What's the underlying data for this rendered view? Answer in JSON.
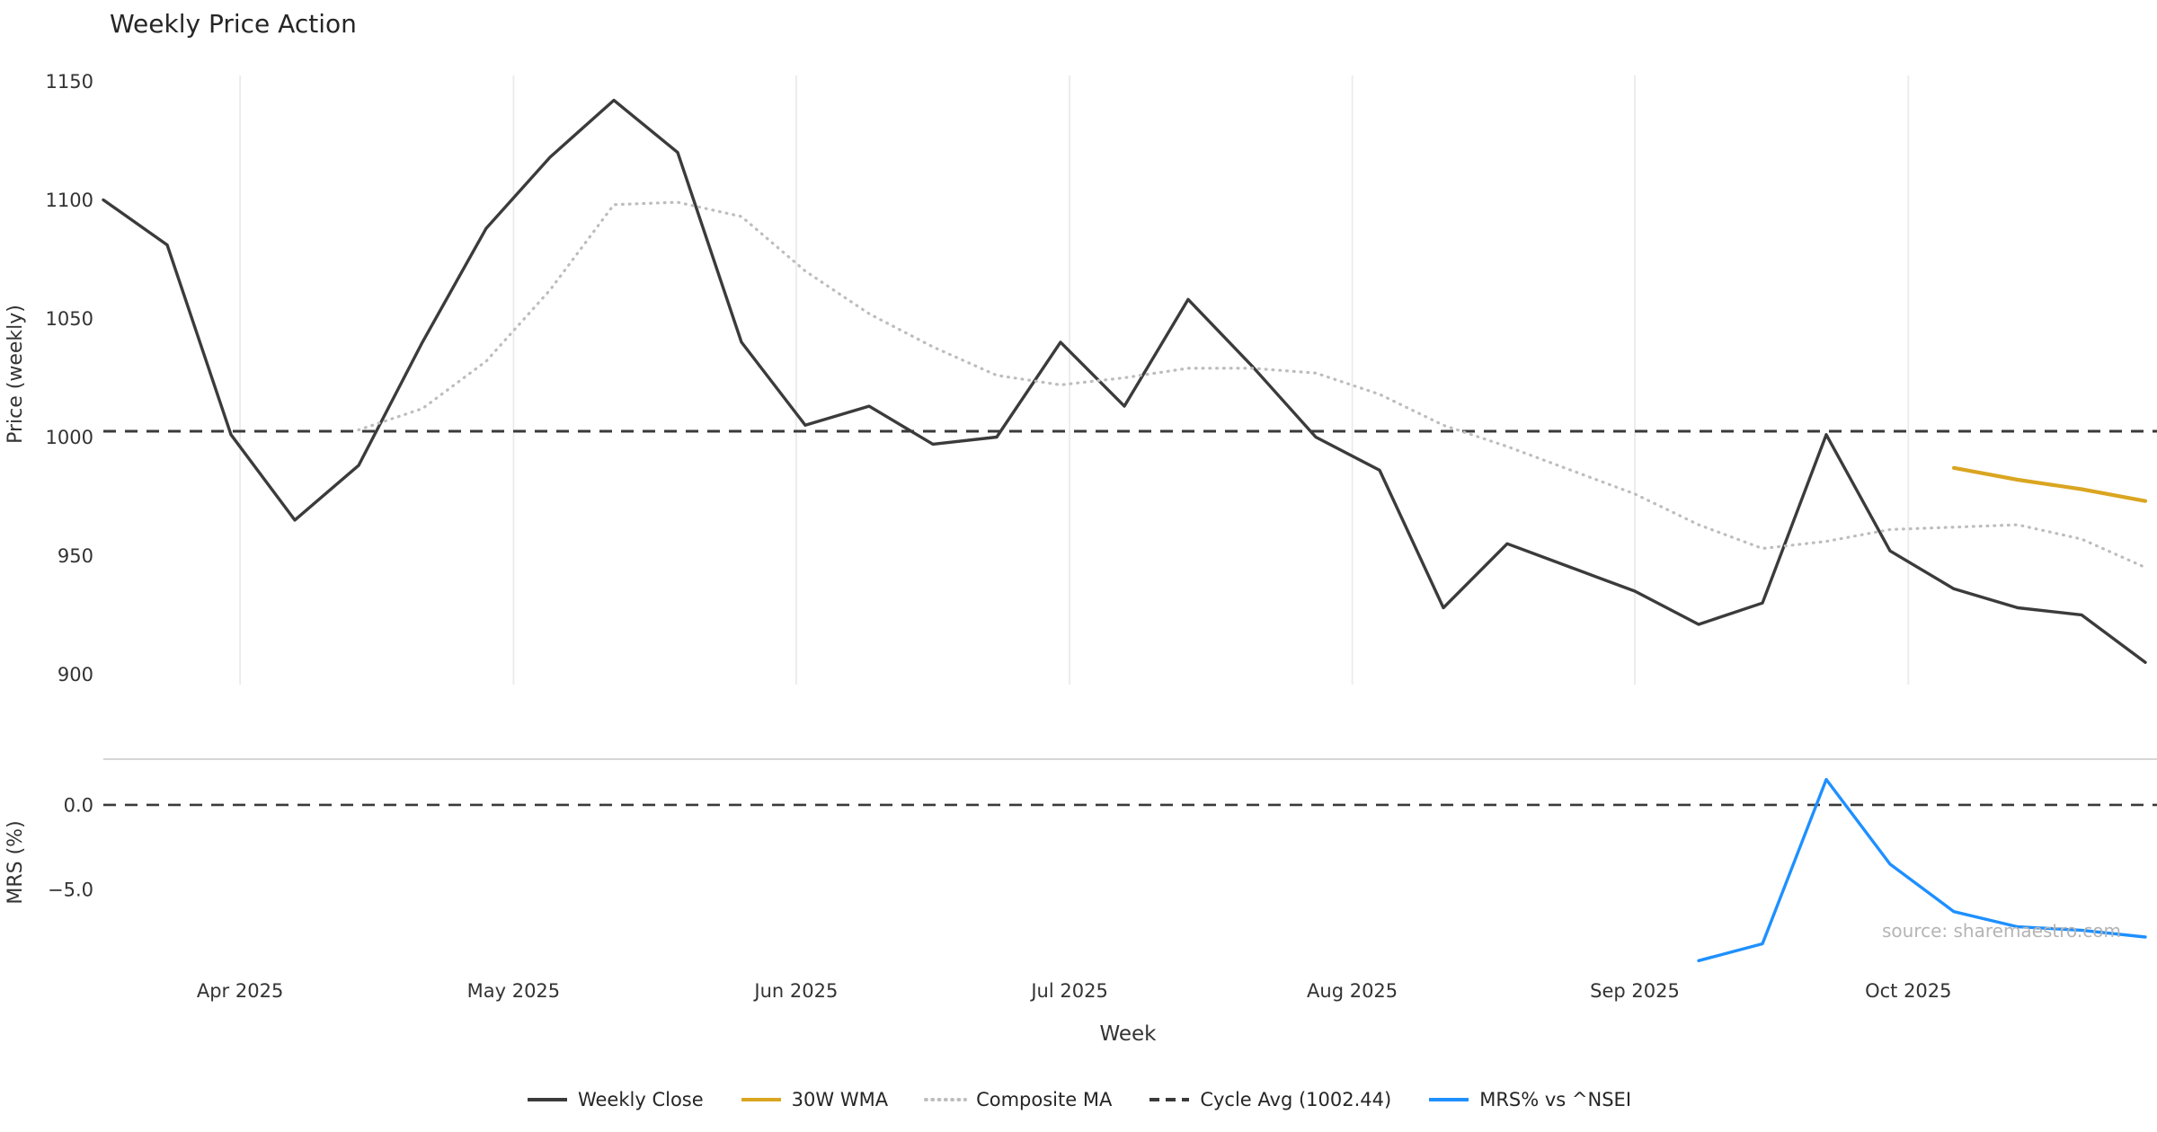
{
  "watermark": "source: sharemaestro.com",
  "chart_data": {
    "type": "line",
    "title": "Weekly Price Action",
    "xlabel": "Week",
    "x_unit": "weekly (week start date)",
    "x_weeks": [
      "2025-03-17",
      "2025-03-24",
      "2025-03-31",
      "2025-04-07",
      "2025-04-14",
      "2025-04-21",
      "2025-04-28",
      "2025-05-05",
      "2025-05-12",
      "2025-05-19",
      "2025-05-26",
      "2025-06-02",
      "2025-06-09",
      "2025-06-16",
      "2025-06-23",
      "2025-06-30",
      "2025-07-07",
      "2025-07-14",
      "2025-07-21",
      "2025-07-28",
      "2025-08-04",
      "2025-08-11",
      "2025-08-18",
      "2025-08-25",
      "2025-09-01",
      "2025-09-08",
      "2025-09-15",
      "2025-09-22",
      "2025-09-29",
      "2025-10-06",
      "2025-10-13",
      "2025-10-20",
      "2025-10-27"
    ],
    "months": [
      {
        "label": "Apr 2025",
        "date": "2025-04-01"
      },
      {
        "label": "May 2025",
        "date": "2025-05-01"
      },
      {
        "label": "Jun 2025",
        "date": "2025-06-01"
      },
      {
        "label": "Jul 2025",
        "date": "2025-07-01"
      },
      {
        "label": "Aug 2025",
        "date": "2025-08-01"
      },
      {
        "label": "Sep 2025",
        "date": "2025-09-01"
      },
      {
        "label": "Oct 2025",
        "date": "2025-10-01"
      }
    ],
    "panels": [
      {
        "id": "price",
        "ylabel": "Price (weekly)",
        "ylim": [
          896,
          1157
        ],
        "grid": true,
        "yticks": [
          {
            "value": 1150,
            "label": "1150"
          },
          {
            "value": 1100,
            "label": "1100"
          },
          {
            "value": 1050,
            "label": "1050"
          },
          {
            "value": 1000,
            "label": "1000"
          },
          {
            "value": 950,
            "label": "950"
          },
          {
            "value": 900,
            "label": "900"
          }
        ],
        "series": [
          {
            "name": "Weekly Close",
            "color": "#3b3b3b",
            "style": "solid",
            "width": 3.4,
            "values": [
              1100,
              1081,
              1001,
              965,
              988,
              1040,
              1088,
              1118,
              1142,
              1120,
              1040,
              1005,
              1013,
              997,
              1000,
              1040,
              1013,
              1058,
              1030,
              1000,
              986,
              928,
              955,
              945,
              935,
              921,
              930,
              1001,
              952,
              936,
              928,
              925,
              905
            ]
          },
          {
            "name": "30W WMA",
            "color": "#daa520",
            "style": "solid",
            "width": 4.2,
            "values": [
              null,
              null,
              null,
              null,
              null,
              null,
              null,
              null,
              null,
              null,
              null,
              null,
              null,
              null,
              null,
              null,
              null,
              null,
              null,
              null,
              null,
              null,
              null,
              null,
              null,
              null,
              null,
              null,
              null,
              987,
              982,
              978,
              973
            ]
          },
          {
            "name": "Composite MA",
            "color": "#bdbdbd",
            "style": "dotted",
            "width": 3.2,
            "values": [
              null,
              null,
              null,
              null,
              1003,
              1012,
              1032,
              1062,
              1098,
              1099,
              1093,
              1070,
              1052,
              1038,
              1026,
              1022,
              1025,
              1029,
              1029,
              1027,
              1018,
              1005,
              996,
              986,
              976,
              963,
              953,
              956,
              961,
              962,
              963,
              957,
              945
            ]
          }
        ],
        "hlines": [
          {
            "name": "Cycle Avg",
            "label": "Cycle Avg (1002.44)",
            "value": 1002.44,
            "color": "#3a3a3a",
            "style": "dashed",
            "width": 3
          }
        ]
      },
      {
        "id": "mrs",
        "ylabel": "MRS (%)",
        "ylim": [
          -9.5,
          2.7
        ],
        "grid": false,
        "yticks": [
          {
            "value": 0,
            "label": "0.0"
          },
          {
            "value": -5,
            "label": "−5.0"
          }
        ],
        "series": [
          {
            "name": "MRS% vs ^NSEI",
            "color": "#1e90ff",
            "style": "solid",
            "width": 3.4,
            "values": [
              null,
              null,
              null,
              null,
              null,
              null,
              null,
              null,
              null,
              null,
              null,
              null,
              null,
              null,
              null,
              null,
              null,
              null,
              null,
              null,
              null,
              null,
              null,
              null,
              null,
              -9.2,
              -8.2,
              1.5,
              -3.5,
              -6.3,
              -7.2,
              -7.4,
              -7.8
            ]
          }
        ],
        "hlines": [
          {
            "name": "zero",
            "label": "0.0",
            "value": 0,
            "color": "#3a3a3a",
            "style": "dashed",
            "width": 2.6
          }
        ]
      }
    ],
    "legend": [
      {
        "label": "Weekly Close",
        "color": "#3b3b3b",
        "style": "solid"
      },
      {
        "label": "30W WMA",
        "color": "#daa520",
        "style": "solid"
      },
      {
        "label": "Composite MA",
        "color": "#bdbdbd",
        "style": "dotted"
      },
      {
        "label": "Cycle Avg (1002.44)",
        "color": "#3a3a3a",
        "style": "dashed"
      },
      {
        "label": "MRS% vs ^NSEI",
        "color": "#1e90ff",
        "style": "solid"
      }
    ]
  }
}
